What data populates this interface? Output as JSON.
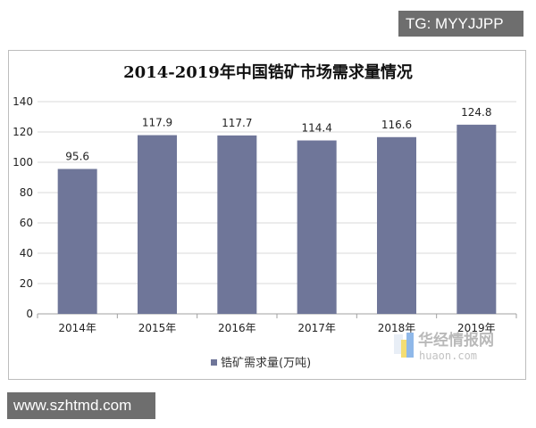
{
  "chart_data": {
    "type": "bar",
    "title": "2014-2019年中国锆矿市场需求量情况",
    "categories": [
      "2014年",
      "2015年",
      "2016年",
      "2017年",
      "2018年",
      "2019年"
    ],
    "series": [
      {
        "name": "锆矿需求量(万吨)",
        "values": [
          95.6,
          117.9,
          117.7,
          114.4,
          116.6,
          124.8
        ],
        "color": "#6f7699"
      }
    ],
    "ylim": [
      0,
      140
    ],
    "yticks": [
      0,
      20,
      40,
      60,
      80,
      100,
      120,
      140
    ],
    "xlabel": "",
    "ylabel": "",
    "grid": true,
    "legend_position": "bottom-left"
  },
  "overlays": {
    "tg_text": "TG: MYYJJPP",
    "url_text": "www.szhtmd.com",
    "watermark_cn": "华经情报网",
    "watermark_en": "huaon.com"
  },
  "colors": {
    "bar": "#6f7699",
    "grid": "#d9d9d9",
    "axis": "#a0a0a0",
    "badge": "#6e6e6e"
  }
}
